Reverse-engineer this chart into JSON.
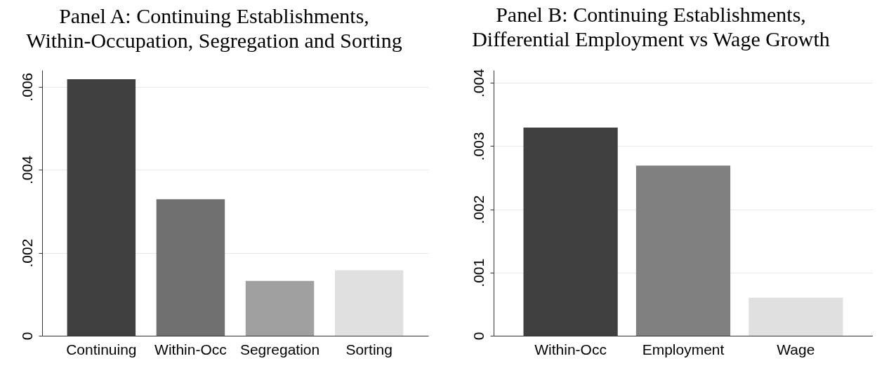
{
  "chart_data": [
    {
      "type": "bar",
      "title": "Panel A: Continuing Establishments,\nWithin-Occupation, Segregation and Sorting",
      "categories": [
        "Continuing",
        "Within-Occ",
        "Segregation",
        "Sorting"
      ],
      "values": [
        0.00618,
        0.00329,
        0.00132,
        0.00158
      ],
      "colors": [
        "#404040",
        "#707070",
        "#a0a0a0",
        "#e0e0e0"
      ],
      "ylim": [
        0,
        0.0064
      ],
      "yticks": [
        {
          "value": 0,
          "label": "0"
        },
        {
          "value": 0.002,
          "label": ".002"
        },
        {
          "value": 0.004,
          "label": ".004"
        },
        {
          "value": 0.006,
          "label": ".006"
        }
      ],
      "grid": "y"
    },
    {
      "type": "bar",
      "title": "Panel B: Continuing Establishments,\nDifferential Employment vs Wage Growth",
      "categories": [
        "Within-Occ",
        "Employment",
        "Wage"
      ],
      "values": [
        0.00329,
        0.00269,
        0.0006
      ],
      "colors": [
        "#404040",
        "#808080",
        "#e0e0e0"
      ],
      "ylim": [
        0,
        0.0042
      ],
      "yticks": [
        {
          "value": 0,
          "label": "0"
        },
        {
          "value": 0.001,
          "label": ".001"
        },
        {
          "value": 0.002,
          "label": ".002"
        },
        {
          "value": 0.003,
          "label": ".003"
        },
        {
          "value": 0.004,
          "label": ".004"
        }
      ],
      "grid": "y"
    }
  ]
}
